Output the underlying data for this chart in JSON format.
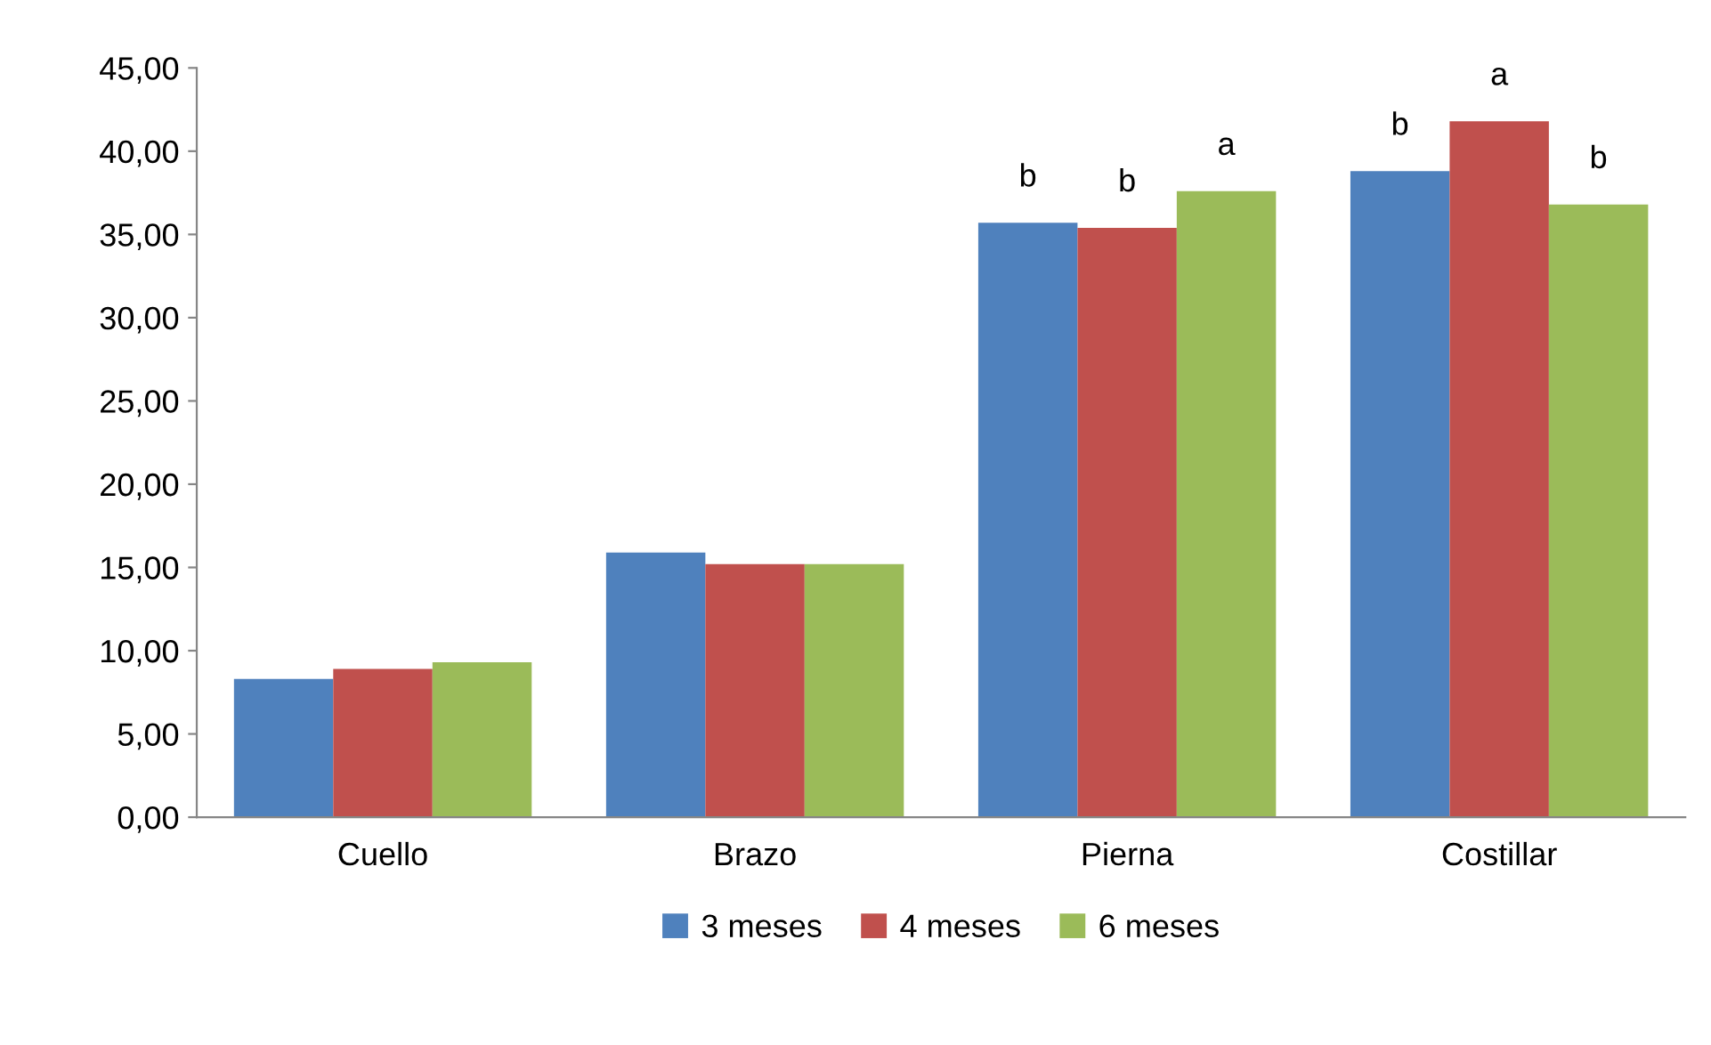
{
  "chart_data": {
    "type": "bar",
    "categories": [
      "Cuello",
      "Brazo",
      "Pierna",
      "Costillar"
    ],
    "series": [
      {
        "name": "3 meses",
        "color": "#4f81bd",
        "values": [
          8.3,
          15.9,
          35.7,
          38.8
        ]
      },
      {
        "name": "4 meses",
        "color": "#c0504d",
        "values": [
          8.9,
          15.2,
          35.4,
          41.8
        ]
      },
      {
        "name": "6 meses",
        "color": "#9bbb59",
        "values": [
          9.3,
          15.2,
          37.6,
          36.8
        ]
      }
    ],
    "ylim": [
      0,
      45
    ],
    "yticks": [
      {
        "value": 0,
        "label": "0,00"
      },
      {
        "value": 5,
        "label": "5,00"
      },
      {
        "value": 10,
        "label": "10,00"
      },
      {
        "value": 15,
        "label": "15,00"
      },
      {
        "value": 20,
        "label": "20,00"
      },
      {
        "value": 25,
        "label": "25,00"
      },
      {
        "value": 30,
        "label": "30,00"
      },
      {
        "value": 35,
        "label": "35,00"
      },
      {
        "value": 40,
        "label": "40,00"
      },
      {
        "value": 45,
        "label": "45,00"
      }
    ],
    "annotations": [
      "b",
      "b",
      "a",
      "b",
      "a",
      "b"
    ],
    "grid": false,
    "legend": "bottom"
  }
}
